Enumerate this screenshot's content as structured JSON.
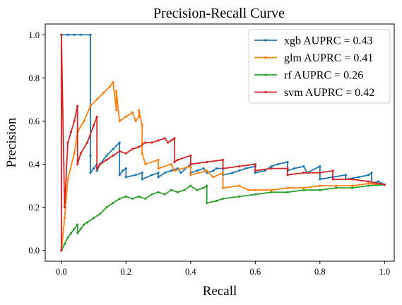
{
  "chart_data": {
    "type": "line",
    "title": "Precision-Recall Curve",
    "xlabel": "Recall",
    "ylabel": "Precision",
    "xlim": [
      -0.05,
      1.03
    ],
    "ylim": [
      -0.05,
      1.05
    ],
    "xticks": [
      0.0,
      0.2,
      0.4,
      0.6,
      0.8,
      1.0
    ],
    "xtick_labels": [
      "0.0",
      "0.2",
      "0.4",
      "0.6",
      "0.8",
      "1.0"
    ],
    "yticks": [
      0.0,
      0.2,
      0.4,
      0.6,
      0.8,
      1.0
    ],
    "ytick_labels": [
      "0.0",
      "0.2",
      "0.4",
      "0.6",
      "0.8",
      "1.0"
    ],
    "grid": false,
    "legend_position": "top-right",
    "series": [
      {
        "name": "xgb AUPRC = 0.43",
        "color": "#1f77b4",
        "x": [
          0,
          0,
          0.02,
          0.04,
          0.06,
          0.09,
          0.09,
          0.09,
          0.1,
          0.11,
          0.11,
          0.12,
          0.14,
          0.16,
          0.18,
          0.18,
          0.19,
          0.2,
          0.2,
          0.23,
          0.25,
          0.25,
          0.28,
          0.3,
          0.3,
          0.32,
          0.34,
          0.36,
          0.37,
          0.4,
          0.4,
          0.42,
          0.44,
          0.45,
          0.47,
          0.48,
          0.5,
          0.5,
          0.53,
          0.55,
          0.57,
          0.6,
          0.6,
          0.63,
          0.65,
          0.67,
          0.7,
          0.7,
          0.72,
          0.75,
          0.76,
          0.8,
          0.8,
          0.84,
          0.88,
          0.88,
          0.92,
          0.95,
          0.96,
          0.96,
          0.98,
          1.0
        ],
        "y": [
          0,
          1.0,
          1.0,
          1.0,
          1.0,
          1.0,
          0.44,
          0.36,
          0.38,
          0.4,
          0.37,
          0.4,
          0.44,
          0.47,
          0.5,
          0.35,
          0.37,
          0.38,
          0.34,
          0.35,
          0.36,
          0.33,
          0.35,
          0.36,
          0.34,
          0.36,
          0.37,
          0.38,
          0.36,
          0.4,
          0.36,
          0.37,
          0.38,
          0.36,
          0.37,
          0.38,
          0.38,
          0.35,
          0.36,
          0.37,
          0.38,
          0.39,
          0.36,
          0.37,
          0.39,
          0.4,
          0.41,
          0.37,
          0.38,
          0.39,
          0.36,
          0.39,
          0.33,
          0.34,
          0.35,
          0.33,
          0.34,
          0.35,
          0.36,
          0.31,
          0.32,
          0.305
        ]
      },
      {
        "name": "glm AUPRC = 0.41",
        "color": "#ff7f0e",
        "x": [
          0,
          0.01,
          0.02,
          0.04,
          0.05,
          0.07,
          0.09,
          0.11,
          0.13,
          0.15,
          0.16,
          0.17,
          0.17,
          0.18,
          0.2,
          0.22,
          0.23,
          0.24,
          0.24,
          0.25,
          0.25,
          0.25,
          0.26,
          0.3,
          0.3,
          0.34,
          0.35,
          0.4,
          0.4,
          0.45,
          0.47,
          0.5,
          0.5,
          0.55,
          0.58,
          0.6,
          0.65,
          0.7,
          0.75,
          0.8,
          0.85,
          0.9,
          0.95,
          1.0
        ],
        "y": [
          0,
          0.15,
          0.33,
          0.45,
          0.55,
          0.6,
          0.67,
          0.7,
          0.73,
          0.76,
          0.78,
          0.65,
          0.74,
          0.6,
          0.62,
          0.64,
          0.6,
          0.62,
          0.65,
          0.58,
          0.5,
          0.45,
          0.4,
          0.42,
          0.38,
          0.4,
          0.37,
          0.39,
          0.35,
          0.37,
          0.34,
          0.36,
          0.29,
          0.3,
          0.28,
          0.28,
          0.28,
          0.29,
          0.29,
          0.3,
          0.3,
          0.3,
          0.31,
          0.305
        ]
      },
      {
        "name": "rf AUPRC = 0.26",
        "color": "#2ca02c",
        "x": [
          0,
          0.01,
          0.02,
          0.03,
          0.04,
          0.05,
          0.05,
          0.06,
          0.07,
          0.08,
          0.1,
          0.12,
          0.14,
          0.16,
          0.18,
          0.2,
          0.22,
          0.24,
          0.26,
          0.28,
          0.3,
          0.32,
          0.34,
          0.36,
          0.38,
          0.4,
          0.42,
          0.44,
          0.45,
          0.45,
          0.48,
          0.5,
          0.55,
          0.6,
          0.65,
          0.7,
          0.75,
          0.8,
          0.85,
          0.9,
          0.95,
          1.0
        ],
        "y": [
          0,
          0.03,
          0.06,
          0.08,
          0.1,
          0.12,
          0.08,
          0.1,
          0.12,
          0.13,
          0.15,
          0.17,
          0.2,
          0.22,
          0.24,
          0.25,
          0.24,
          0.25,
          0.24,
          0.26,
          0.27,
          0.26,
          0.28,
          0.27,
          0.28,
          0.3,
          0.28,
          0.29,
          0.3,
          0.22,
          0.23,
          0.24,
          0.25,
          0.26,
          0.27,
          0.27,
          0.28,
          0.28,
          0.29,
          0.29,
          0.3,
          0.305
        ]
      },
      {
        "name": "svm AUPRC = 0.42",
        "color": "#d62728",
        "x": [
          0,
          0,
          0.01,
          0.02,
          0.03,
          0.04,
          0.05,
          0.05,
          0.06,
          0.08,
          0.1,
          0.11,
          0.11,
          0.12,
          0.14,
          0.16,
          0.18,
          0.2,
          0.22,
          0.24,
          0.26,
          0.28,
          0.3,
          0.32,
          0.33,
          0.34,
          0.35,
          0.35,
          0.36,
          0.4,
          0.4,
          0.45,
          0.5,
          0.5,
          0.55,
          0.6,
          0.6,
          0.65,
          0.7,
          0.7,
          0.75,
          0.8,
          0.84,
          0.84,
          0.9,
          0.95,
          1.0
        ],
        "y": [
          0,
          1.0,
          0.2,
          0.5,
          0.55,
          0.6,
          0.67,
          0.4,
          0.45,
          0.5,
          0.58,
          0.62,
          0.38,
          0.4,
          0.42,
          0.44,
          0.46,
          0.45,
          0.47,
          0.48,
          0.5,
          0.5,
          0.51,
          0.52,
          0.5,
          0.51,
          0.52,
          0.41,
          0.42,
          0.44,
          0.4,
          0.41,
          0.42,
          0.38,
          0.39,
          0.4,
          0.37,
          0.38,
          0.38,
          0.35,
          0.36,
          0.36,
          0.37,
          0.33,
          0.33,
          0.32,
          0.305
        ]
      }
    ]
  }
}
